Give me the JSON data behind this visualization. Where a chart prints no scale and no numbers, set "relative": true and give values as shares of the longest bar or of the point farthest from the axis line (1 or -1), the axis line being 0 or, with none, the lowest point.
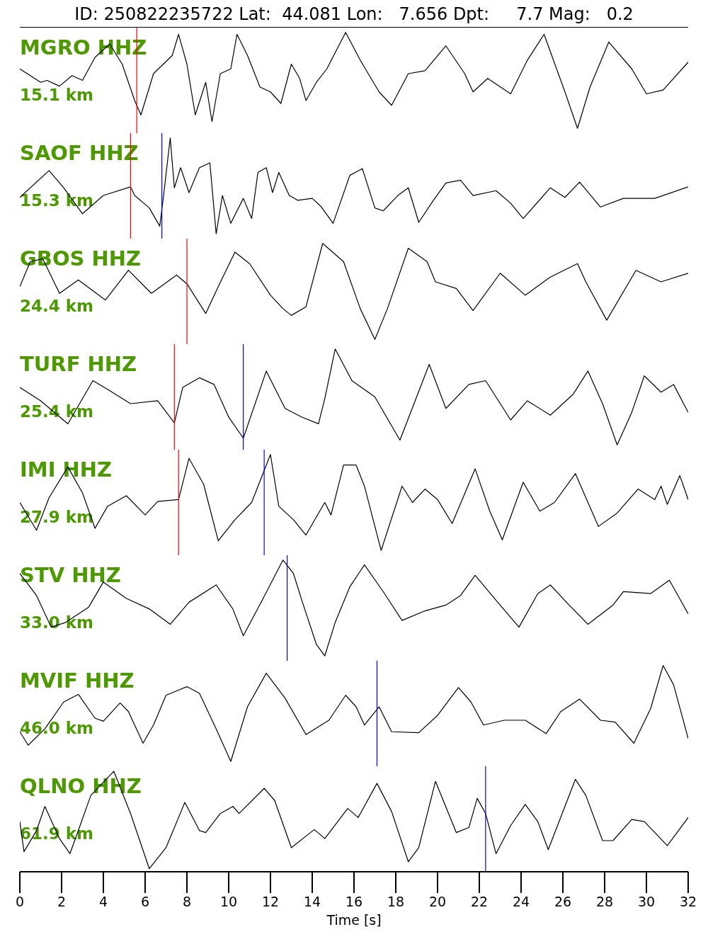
{
  "chart_data": [
    {
      "type": "line",
      "title": "ID: 250822235722 Lat:  44.081 Lon:   7.656 Dpt:     7.7 Mag:   0.2",
      "relative": true,
      "tick_labels": false,
      "xlim": [
        0,
        32
      ],
      "color": "#000000",
      "annotations": [
        "MGRO HHZ",
        "15.1 km"
      ],
      "ref_lines": [
        {
          "axis": "x",
          "value": 5.6,
          "color": "#ff0000"
        }
      ],
      "x": [
        0,
        1.0,
        1.3,
        1.9,
        2.5,
        3.0,
        3.6,
        4.3,
        4.9,
        5.5,
        5.8,
        6.4,
        7.3,
        7.6,
        8.0,
        8.4,
        8.9,
        9.2,
        9.6,
        10.1,
        10.4,
        10.9,
        11.5,
        12.0,
        12.5,
        13.0,
        13.4,
        13.7,
        14.2,
        14.7,
        15.6,
        16.3,
        17.2,
        17.8,
        18.6,
        19.4,
        20.4,
        21.3,
        21.7,
        22.4,
        23.5,
        24.3,
        25.1,
        26.1,
        26.7,
        27.3,
        28.2,
        29.3,
        30.0,
        30.8,
        32
      ],
      "values": [
        0.62,
        0.48,
        0.5,
        0.44,
        0.55,
        0.5,
        0.74,
        0.88,
        0.67,
        0.29,
        0.14,
        0.57,
        0.76,
        0.98,
        0.67,
        0.14,
        0.48,
        0.07,
        0.57,
        0.62,
        0.98,
        0.76,
        0.43,
        0.38,
        0.26,
        0.67,
        0.52,
        0.29,
        0.48,
        0.62,
        1,
        0.71,
        0.38,
        0.24,
        0.57,
        0.6,
        0.86,
        0.57,
        0.38,
        0.52,
        0.36,
        0.71,
        0.98,
        0.38,
        0,
        0.43,
        0.9,
        0.62,
        0.36,
        0.4,
        0.69
      ]
    },
    {
      "type": "line",
      "relative": true,
      "tick_labels": false,
      "xlim": [
        0,
        32
      ],
      "color": "#000000",
      "annotations": [
        "SAOF HHZ",
        "15.3 km"
      ],
      "ref_lines": [
        {
          "axis": "x",
          "value": 5.3,
          "color": "#ff0000"
        },
        {
          "axis": "x",
          "value": 6.8,
          "color": "#0000ff"
        }
      ],
      "x": [
        0,
        1.4,
        2.1,
        3.0,
        4.0,
        5.3,
        5.5,
        6.2,
        6.7,
        6.9,
        7.2,
        7.4,
        7.7,
        8.1,
        8.6,
        9.1,
        9.4,
        9.7,
        10.1,
        10.7,
        11.1,
        11.4,
        11.8,
        12.1,
        12.4,
        12.9,
        13.3,
        14.0,
        14.4,
        15.0,
        15.8,
        16.4,
        17.0,
        17.4,
        18.1,
        18.6,
        19.1,
        19.8,
        20.4,
        21.1,
        21.7,
        22.8,
        23.5,
        24.1,
        25.4,
        26.1,
        26.8,
        27.8,
        28.9,
        30.4,
        32
      ],
      "values": [
        0.38,
        0.66,
        0.48,
        0.21,
        0.4,
        0.49,
        0.4,
        0.27,
        0.08,
        0.43,
        1,
        0.48,
        0.69,
        0.43,
        0.69,
        0.74,
        0,
        0.4,
        0.11,
        0.37,
        0.16,
        0.64,
        0.69,
        0.43,
        0.64,
        0.4,
        0.35,
        0.37,
        0.29,
        0.11,
        0.61,
        0.68,
        0.27,
        0.24,
        0.4,
        0.48,
        0.12,
        0.35,
        0.53,
        0.56,
        0.4,
        0.45,
        0.32,
        0.16,
        0.48,
        0.38,
        0.54,
        0.28,
        0.37,
        0.37,
        0.49
      ]
    },
    {
      "type": "line",
      "relative": true,
      "tick_labels": false,
      "xlim": [
        0,
        32
      ],
      "color": "#000000",
      "annotations": [
        "GBOS HHZ",
        "24.4 km"
      ],
      "ref_lines": [
        {
          "axis": "x",
          "value": 8.0,
          "color": "#ff0000"
        }
      ],
      "x": [
        0,
        0.5,
        1.1,
        1.9,
        2.8,
        4.1,
        5.2,
        6.3,
        7.5,
        8.0,
        8.9,
        9.5,
        10.3,
        11.0,
        12.0,
        12.6,
        13.0,
        13.7,
        14.5,
        15.5,
        16.3,
        17.0,
        17.6,
        18.6,
        19.5,
        19.9,
        20.9,
        21.7,
        23.0,
        24.2,
        25.4,
        26.7,
        27.1,
        28.1,
        29.5,
        30.7,
        32
      ],
      "values": [
        0.55,
        0.81,
        0.84,
        0.48,
        0.62,
        0.41,
        0.72,
        0.48,
        0.67,
        0.58,
        0.27,
        0.55,
        0.91,
        0.79,
        0.46,
        0.32,
        0.25,
        0.34,
        1,
        0.81,
        0.32,
        0,
        0.32,
        0.95,
        0.81,
        0.6,
        0.53,
        0.3,
        0.69,
        0.46,
        0.65,
        0.79,
        0.6,
        0.2,
        0.72,
        0.6,
        0.69
      ]
    },
    {
      "type": "line",
      "relative": true,
      "tick_labels": false,
      "xlim": [
        0,
        32
      ],
      "color": "#000000",
      "annotations": [
        "TURF HHZ",
        "25.4 km"
      ],
      "ref_lines": [
        {
          "axis": "x",
          "value": 7.4,
          "color": "#ff0000"
        },
        {
          "axis": "x",
          "value": 10.7,
          "color": "#0000ff"
        }
      ],
      "x": [
        0,
        1.0,
        2.3,
        3.5,
        4.2,
        5.3,
        6.6,
        7.4,
        7.8,
        8.6,
        9.3,
        10.0,
        10.7,
        11.8,
        12.7,
        13.5,
        14.3,
        14.6,
        15.1,
        15.9,
        17.0,
        18.2,
        19.6,
        20.4,
        21.5,
        22.3,
        23.5,
        24.3,
        25.4,
        26.5,
        27.2,
        27.9,
        28.6,
        29.3,
        29.9,
        30.7,
        31.3,
        32
      ],
      "values": [
        0.6,
        0.46,
        0.22,
        0.67,
        0.58,
        0.43,
        0.46,
        0.23,
        0.6,
        0.7,
        0.63,
        0.29,
        0.07,
        0.77,
        0.38,
        0.29,
        0.22,
        0.48,
        1,
        0.67,
        0.5,
        0.05,
        0.84,
        0.38,
        0.63,
        0.67,
        0.26,
        0.46,
        0.31,
        0.53,
        0.77,
        0.43,
        0,
        0.34,
        0.72,
        0.55,
        0.63,
        0.34
      ]
    },
    {
      "type": "line",
      "relative": true,
      "tick_labels": false,
      "xlim": [
        0,
        32
      ],
      "color": "#000000",
      "annotations": [
        "IMI HHZ",
        "27.9 km"
      ],
      "ref_lines": [
        {
          "axis": "x",
          "value": 7.6,
          "color": "#ff0000"
        },
        {
          "axis": "x",
          "value": 11.7,
          "color": "#0000ff"
        }
      ],
      "x": [
        0,
        0.8,
        1.4,
        2.3,
        3.0,
        3.6,
        4.2,
        5.1,
        6.0,
        6.6,
        7.6,
        8.1,
        8.8,
        9.5,
        10.3,
        11.1,
        12.0,
        12.4,
        13.1,
        13.7,
        14.6,
        14.9,
        15.5,
        16.1,
        16.5,
        17.3,
        18.3,
        18.8,
        19.4,
        20.0,
        20.7,
        21.8,
        22.5,
        23.1,
        24.1,
        24.9,
        25.6,
        26.6,
        27.7,
        28.6,
        29.6,
        30.4,
        30.7,
        31.0,
        31.6,
        32
      ],
      "values": [
        0.5,
        0.21,
        0.55,
        0.87,
        0.6,
        0.23,
        0.46,
        0.57,
        0.37,
        0.51,
        0.53,
        0.96,
        0.69,
        0.1,
        0.32,
        0.5,
        1,
        0.46,
        0.32,
        0.16,
        0.5,
        0.37,
        0.89,
        0.89,
        0.67,
        0,
        0.67,
        0.5,
        0.64,
        0.53,
        0.28,
        0.85,
        0.41,
        0.11,
        0.71,
        0.41,
        0.5,
        0.8,
        0.25,
        0.39,
        0.64,
        0.53,
        0.67,
        0.48,
        0.78,
        0.53
      ]
    },
    {
      "type": "line",
      "relative": true,
      "tick_labels": false,
      "xlim": [
        0,
        32
      ],
      "color": "#000000",
      "annotations": [
        "STV HHZ",
        "33.0 km"
      ],
      "ref_lines": [
        {
          "axis": "x",
          "value": 12.8,
          "color": "#0000ff"
        }
      ],
      "x": [
        0,
        0.8,
        1.5,
        2.2,
        3.3,
        4.0,
        5.1,
        6.2,
        7.2,
        8.1,
        9.4,
        10.2,
        10.7,
        11.6,
        12.6,
        13.1,
        13.5,
        14.2,
        14.6,
        15.1,
        15.8,
        16.5,
        17.4,
        18.3,
        19.4,
        20.4,
        21.1,
        21.8,
        22.8,
        23.9,
        24.8,
        25.4,
        26.3,
        27.2,
        28.4,
        28.9,
        30.2,
        31.1,
        32
      ],
      "values": [
        0.86,
        0.63,
        0.3,
        0.35,
        0.51,
        0.77,
        0.6,
        0.49,
        0.33,
        0.56,
        0.74,
        0.49,
        0.21,
        0.58,
        1,
        0.86,
        0.58,
        0.12,
        0,
        0.35,
        0.72,
        0.95,
        0.67,
        0.37,
        0.47,
        0.53,
        0.63,
        0.84,
        0.58,
        0.3,
        0.65,
        0.74,
        0.53,
        0.33,
        0.53,
        0.67,
        0.65,
        0.79,
        0.44
      ]
    },
    {
      "type": "line",
      "relative": true,
      "tick_labels": false,
      "xlim": [
        0,
        32
      ],
      "color": "#000000",
      "annotations": [
        "MVIF HHZ",
        "46.0 km"
      ],
      "ref_lines": [
        {
          "axis": "x",
          "value": 17.1,
          "color": "#0000ff"
        }
      ],
      "x": [
        0,
        0.4,
        1.2,
        2.1,
        2.8,
        3.6,
        4.0,
        4.8,
        5.2,
        5.9,
        6.4,
        7.0,
        8.0,
        8.6,
        9.4,
        10.1,
        10.9,
        11.8,
        12.7,
        13.7,
        14.8,
        15.6,
        16.1,
        16.5,
        17.2,
        17.8,
        19.1,
        20.0,
        21.0,
        21.6,
        22.2,
        23.2,
        24.2,
        25.2,
        25.9,
        26.8,
        27.8,
        28.5,
        29.4,
        30.2,
        30.8,
        31.3,
        32
      ],
      "values": [
        0.31,
        0.17,
        0.34,
        0.62,
        0.7,
        0.45,
        0.42,
        0.61,
        0.52,
        0.19,
        0.38,
        0.69,
        0.78,
        0.71,
        0.34,
        0,
        0.57,
        0.92,
        0.66,
        0.28,
        0.43,
        0.69,
        0.57,
        0.38,
        0.57,
        0.31,
        0.3,
        0.48,
        0.77,
        0.62,
        0.38,
        0.43,
        0.43,
        0.29,
        0.52,
        0.65,
        0.43,
        0.41,
        0.19,
        0.55,
        1,
        0.8,
        0.24
      ]
    },
    {
      "type": "line",
      "relative": true,
      "tick_labels": "x",
      "xlim": [
        0,
        32
      ],
      "xlabel": "Time [s]",
      "color": "#000000",
      "annotations": [
        "QLNO HHZ",
        "61.9 km"
      ],
      "ref_lines": [
        {
          "axis": "x",
          "value": 22.3,
          "color": "#0000ff"
        }
      ],
      "xticks": [
        0,
        2,
        4,
        6,
        8,
        10,
        12,
        14,
        16,
        18,
        20,
        22,
        24,
        26,
        28,
        30,
        32
      ],
      "x": [
        0,
        0.2,
        0.8,
        1.2,
        1.9,
        2.4,
        2.8,
        3.4,
        4.5,
        5.3,
        6.2,
        7.0,
        7.9,
        8.6,
        8.9,
        9.6,
        10.2,
        10.5,
        11.7,
        12.2,
        13.0,
        14.1,
        14.6,
        15.7,
        16.2,
        17.1,
        17.8,
        18.6,
        19.1,
        19.9,
        20.9,
        21.5,
        21.9,
        22.3,
        22.8,
        23.5,
        24.2,
        24.8,
        25.3,
        26.6,
        27.1,
        27.9,
        28.4,
        29.3,
        29.9,
        31.0,
        32
      ],
      "values": [
        0.5,
        0.2,
        0.41,
        0.65,
        0.33,
        0.18,
        0.41,
        0.76,
        1,
        0.58,
        0.03,
        0.24,
        0.69,
        0.41,
        0.39,
        0.58,
        0.65,
        0.58,
        0.83,
        0.71,
        0.24,
        0.42,
        0.33,
        0.63,
        0.54,
        0.88,
        0.6,
        0.1,
        0.24,
        0.9,
        0.39,
        0.44,
        0.73,
        0.58,
        0.18,
        0.46,
        0.67,
        0.5,
        0.22,
        0.92,
        0.76,
        0.31,
        0.31,
        0.52,
        0.5,
        0.26,
        0.54
      ]
    }
  ]
}
